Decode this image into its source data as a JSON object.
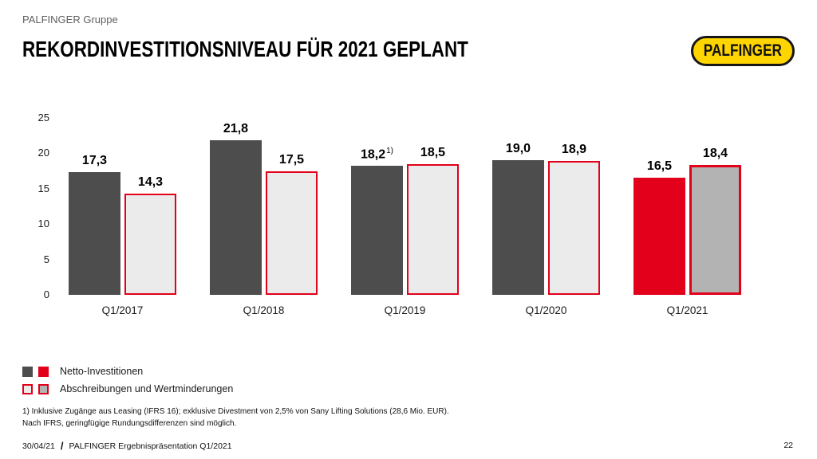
{
  "header": {
    "eyebrow": "PALFINGER Gruppe",
    "title": "REKORDINVESTITIONSNIVEAU FÜR 2021 GEPLANT",
    "logo_text": "PALFINGER"
  },
  "colors": {
    "dark_gray": "#4d4d4d",
    "red": "#e2001a",
    "light_gray_fill": "#ebebeb",
    "mid_gray_fill": "#b3b3b3",
    "logo_yellow": "#ffd500"
  },
  "chart_data": {
    "type": "bar",
    "title": "",
    "xlabel": "",
    "ylabel": "",
    "ylim": [
      0,
      25
    ],
    "yticks": [
      25,
      20,
      15,
      10,
      5,
      0
    ],
    "grid": false,
    "legend_position": "bottom-left",
    "categories": [
      "Q1/2017",
      "Q1/2018",
      "Q1/2019",
      "Q1/2020",
      "Q1/2021"
    ],
    "series": [
      {
        "name": "Netto-Investitionen",
        "values": [
          17.3,
          21.8,
          18.2,
          19.0,
          16.5
        ],
        "labels": [
          "17,3",
          "21,8",
          "18,2",
          "19,0",
          "16,5"
        ],
        "label_sups": [
          "",
          "",
          "1)",
          "",
          ""
        ],
        "fills": [
          "#4d4d4d",
          "#4d4d4d",
          "#4d4d4d",
          "#4d4d4d",
          "#e2001a"
        ],
        "borders": [
          null,
          null,
          null,
          null,
          null
        ],
        "border_widths": [
          0,
          0,
          0,
          0,
          0
        ]
      },
      {
        "name": "Abschreibungen und Wertminderungen",
        "values": [
          14.3,
          17.5,
          18.5,
          18.9,
          18.4
        ],
        "labels": [
          "14,3",
          "17,5",
          "18,5",
          "18,9",
          "18,4"
        ],
        "label_sups": [
          "",
          "",
          "",
          "",
          ""
        ],
        "fills": [
          "#ebebeb",
          "#ebebeb",
          "#ebebeb",
          "#ebebeb",
          "#b3b3b3"
        ],
        "borders": [
          "#e2001a",
          "#e2001a",
          "#e2001a",
          "#e2001a",
          "#e2001a"
        ],
        "border_widths": [
          2,
          2,
          2,
          2,
          3
        ]
      }
    ]
  },
  "legend": {
    "items": [
      {
        "label": "Netto-Investitionen",
        "swatches": [
          {
            "fill": "#4d4d4d",
            "border": null,
            "border_width": 0
          },
          {
            "fill": "#e2001a",
            "border": null,
            "border_width": 0
          }
        ]
      },
      {
        "label": "Abschreibungen und Wertminderungen",
        "swatches": [
          {
            "fill": "#ebebeb",
            "border": "#e2001a",
            "border_width": 2
          },
          {
            "fill": "#b3b3b3",
            "border": "#e2001a",
            "border_width": 2
          }
        ]
      }
    ]
  },
  "footnotes": [
    "1) Inklusive Zugänge aus Leasing (IFRS 16); exklusive Divestment von 2,5% von Sany Lifting Solutions (28,6 Mio. EUR).",
    "Nach IFRS, geringfügige Rundungsdifferenzen sind möglich."
  ],
  "footer": {
    "date": "30/04/21",
    "separator": "/",
    "text": "PALFINGER Ergebnispräsentation Q1/2021",
    "page": "22"
  }
}
